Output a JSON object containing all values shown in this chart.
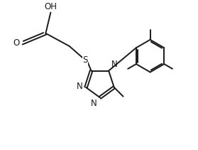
{
  "background_color": "#ffffff",
  "line_color": "#1a1a1a",
  "line_width": 1.4,
  "font_size": 8.5,
  "figsize": [
    2.79,
    2.11
  ],
  "dpi": 100,
  "xlim": [
    0,
    9
  ],
  "ylim": [
    0,
    7
  ]
}
